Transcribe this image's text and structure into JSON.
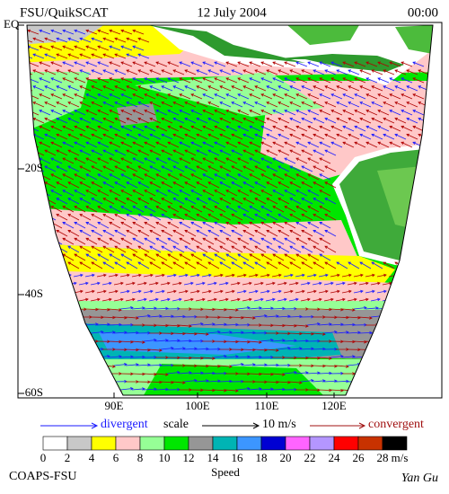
{
  "header": {
    "left": "FSU/QuikSCAT",
    "center": "12 July 2004",
    "right": "00:00"
  },
  "latitude_labels": [
    "EQ",
    "20S",
    "40S",
    "60S"
  ],
  "longitude_labels": [
    "90E",
    "100E",
    "110E",
    "120E"
  ],
  "legend": {
    "divergent": "divergent",
    "scale": "scale",
    "scale_value": "10 m/s",
    "convergent": "convergent"
  },
  "colorbar": {
    "ticks": [
      0,
      2,
      4,
      6,
      8,
      10,
      12,
      14,
      16,
      18,
      20,
      22,
      24,
      26,
      28
    ],
    "colors": [
      "#ffffff",
      "#c8c8c8",
      "#ffff00",
      "#ffc8c8",
      "#96ff96",
      "#00e600",
      "#969696",
      "#00b4b4",
      "#3c96ff",
      "#0000d2",
      "#ff64ff",
      "#b496ff",
      "#ff0000",
      "#c83200",
      "#000000"
    ],
    "unit": "m/s",
    "label": "Speed"
  },
  "footer": {
    "left": "COAPS-FSU",
    "right": "Yan Gu"
  }
}
